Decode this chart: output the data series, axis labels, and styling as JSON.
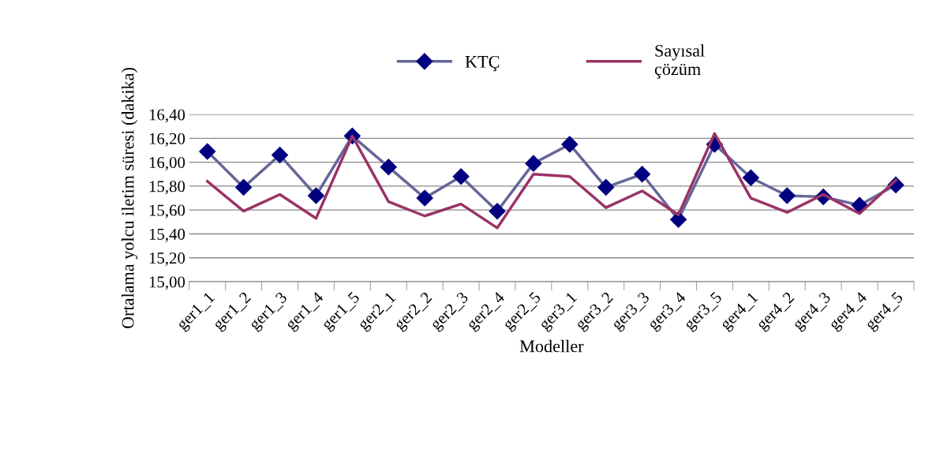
{
  "chart_data": {
    "type": "line",
    "xlabel": "Modeller",
    "ylabel": "Ortalama yolcu iletim süresi (dakika)",
    "categories": [
      "ger1_1",
      "ger1_2",
      "ger1_3",
      "ger1_4",
      "ger1_5",
      "ger2_1",
      "ger2_2",
      "ger2_3",
      "ger2_4",
      "ger2_5",
      "ger3_1",
      "ger3_2",
      "ger3_3",
      "ger3_4",
      "ger3_5",
      "ger4_1",
      "ger4_2",
      "ger4_3",
      "ger4_4",
      "ger4_5"
    ],
    "series": [
      {
        "name": "KTÇ",
        "color": "#666699",
        "marker": "diamond",
        "values": [
          16.09,
          15.79,
          16.06,
          15.72,
          16.22,
          15.96,
          15.7,
          15.88,
          15.59,
          15.99,
          16.15,
          15.79,
          15.9,
          15.52,
          16.15,
          15.87,
          15.72,
          15.71,
          15.64,
          15.81
        ]
      },
      {
        "name": "Sayısal\nçözüm",
        "color": "#993366",
        "marker": "none",
        "values": [
          15.84,
          15.59,
          15.73,
          15.53,
          16.22,
          15.67,
          15.55,
          15.65,
          15.45,
          15.9,
          15.88,
          15.62,
          15.76,
          15.56,
          16.24,
          15.7,
          15.58,
          15.73,
          15.57,
          15.85
        ]
      }
    ],
    "ylim": [
      15.0,
      16.4
    ],
    "yticks": [
      {
        "value": 15.0,
        "label": "15,00"
      },
      {
        "value": 15.2,
        "label": "15,20"
      },
      {
        "value": 15.4,
        "label": "15,40"
      },
      {
        "value": 15.6,
        "label": "15,60"
      },
      {
        "value": 15.8,
        "label": "15,80"
      },
      {
        "value": 16.0,
        "label": "16,00"
      },
      {
        "value": 16.2,
        "label": "16,20"
      },
      {
        "value": 16.4,
        "label": "16,40"
      }
    ],
    "grid": "y",
    "legend": "top",
    "line_style": "solid"
  }
}
